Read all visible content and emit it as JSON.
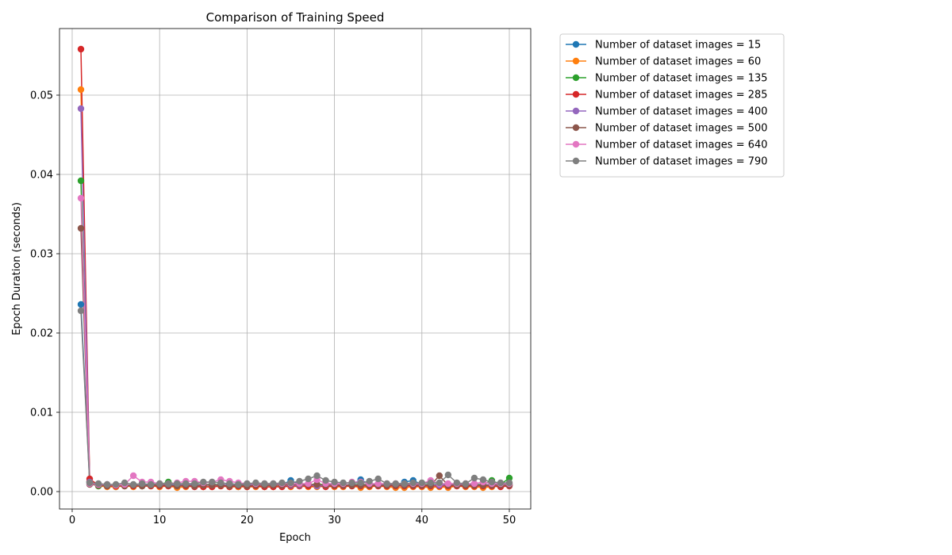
{
  "chart_data": {
    "type": "line",
    "title": "Comparison of Training Speed",
    "xlabel": "Epoch",
    "ylabel": "Epoch Duration (seconds)",
    "xlim": [
      -1.45,
      52.45
    ],
    "ylim": [
      -0.0022,
      0.0584
    ],
    "xticks": [
      0,
      10,
      20,
      30,
      40,
      50
    ],
    "yticks": [
      0.0,
      0.01,
      0.02,
      0.03,
      0.04,
      0.05
    ],
    "ytick_labels": [
      "0.00",
      "0.01",
      "0.02",
      "0.03",
      "0.04",
      "0.05"
    ],
    "grid": true,
    "legend_position": "outside-top-right",
    "x": [
      1,
      2,
      3,
      4,
      5,
      6,
      7,
      8,
      9,
      10,
      11,
      12,
      13,
      14,
      15,
      16,
      17,
      18,
      19,
      20,
      21,
      22,
      23,
      24,
      25,
      26,
      27,
      28,
      29,
      30,
      31,
      32,
      33,
      34,
      35,
      36,
      37,
      38,
      39,
      40,
      41,
      42,
      43,
      44,
      45,
      46,
      47,
      48,
      49,
      50
    ],
    "series": [
      {
        "name": "Number of dataset images = 15",
        "color": "#1f77b4",
        "values": [
          0.0236,
          0.0012,
          0.0008,
          0.0007,
          0.0006,
          0.0008,
          0.0007,
          0.0008,
          0.0009,
          0.0008,
          0.0009,
          0.0008,
          0.0008,
          0.0009,
          0.0008,
          0.0009,
          0.0008,
          0.0009,
          0.0006,
          0.0008,
          0.0009,
          0.0008,
          0.0008,
          0.0009,
          0.0014,
          0.0009,
          0.0008,
          0.0009,
          0.0008,
          0.0009,
          0.0008,
          0.0009,
          0.0015,
          0.0009,
          0.0008,
          0.0009,
          0.0008,
          0.0012,
          0.0014,
          0.0009,
          0.0008,
          0.0009,
          0.0008,
          0.0009,
          0.0008,
          0.0009,
          0.0008,
          0.0009,
          0.0008,
          0.0009
        ]
      },
      {
        "name": "Number of dataset images = 60",
        "color": "#ff7f0e",
        "values": [
          0.0507,
          0.0013,
          0.0007,
          0.0006,
          0.0006,
          0.0007,
          0.0006,
          0.0007,
          0.0007,
          0.0006,
          0.0007,
          0.0005,
          0.0006,
          0.0007,
          0.0006,
          0.0006,
          0.0007,
          0.0006,
          0.0006,
          0.0006,
          0.0006,
          0.0006,
          0.0006,
          0.0007,
          0.0006,
          0.0007,
          0.0006,
          0.0006,
          0.0007,
          0.0006,
          0.0006,
          0.0007,
          0.0005,
          0.0006,
          0.0007,
          0.0006,
          0.0005,
          0.0005,
          0.0006,
          0.0006,
          0.0005,
          0.0006,
          0.0005,
          0.0007,
          0.0006,
          0.0006,
          0.0005,
          0.0006,
          0.0007,
          0.0008
        ]
      },
      {
        "name": "Number of dataset images = 135",
        "color": "#2ca02c",
        "values": [
          0.0392,
          0.0012,
          0.0007,
          0.0008,
          0.0008,
          0.0008,
          0.0008,
          0.0007,
          0.0009,
          0.0009,
          0.0012,
          0.0009,
          0.0008,
          0.0009,
          0.0009,
          0.0009,
          0.0009,
          0.0008,
          0.0008,
          0.0009,
          0.0009,
          0.0008,
          0.0008,
          0.0009,
          0.0009,
          0.0009,
          0.0009,
          0.0009,
          0.0009,
          0.0009,
          0.0008,
          0.0009,
          0.0009,
          0.0009,
          0.0009,
          0.0009,
          0.0008,
          0.0009,
          0.0009,
          0.0009,
          0.0009,
          0.0009,
          0.0009,
          0.0009,
          0.0008,
          0.0009,
          0.0009,
          0.0014,
          0.0009,
          0.0017
        ]
      },
      {
        "name": "Number of dataset images = 285",
        "color": "#d62728",
        "values": [
          0.0558,
          0.0016,
          0.0008,
          0.0007,
          0.0007,
          0.0007,
          0.0007,
          0.0007,
          0.0007,
          0.0007,
          0.0007,
          0.0007,
          0.0007,
          0.0006,
          0.0006,
          0.0006,
          0.0007,
          0.0006,
          0.0007,
          0.0006,
          0.0007,
          0.0006,
          0.0006,
          0.0006,
          0.0007,
          0.0007,
          0.0007,
          0.0007,
          0.0006,
          0.0007,
          0.0007,
          0.0007,
          0.0007,
          0.0007,
          0.0007,
          0.0007,
          0.0007,
          0.0007,
          0.0007,
          0.0007,
          0.0007,
          0.0007,
          0.0007,
          0.0007,
          0.0007,
          0.0007,
          0.0007,
          0.0007,
          0.0006,
          0.0007
        ]
      },
      {
        "name": "Number of dataset images = 400",
        "color": "#9467bd",
        "values": [
          0.0483,
          0.0012,
          0.0008,
          0.0008,
          0.0008,
          0.0008,
          0.0008,
          0.0008,
          0.0008,
          0.0009,
          0.0008,
          0.0008,
          0.0009,
          0.0008,
          0.0009,
          0.0008,
          0.0009,
          0.0008,
          0.0008,
          0.0008,
          0.0009,
          0.0008,
          0.0009,
          0.0008,
          0.0008,
          0.0008,
          0.0009,
          0.0007,
          0.0008,
          0.0009,
          0.0008,
          0.0009,
          0.0008,
          0.0009,
          0.0008,
          0.0009,
          0.0008,
          0.0008,
          0.0009,
          0.0008,
          0.0009,
          0.0008,
          0.0009,
          0.0008,
          0.0009,
          0.0008,
          0.0009,
          0.0008,
          0.0009,
          0.0008
        ]
      },
      {
        "name": "Number of dataset images = 500",
        "color": "#8c564b",
        "values": [
          0.0332,
          0.0009,
          0.0008,
          0.0007,
          0.0008,
          0.0007,
          0.0008,
          0.0007,
          0.0008,
          0.0008,
          0.0008,
          0.0007,
          0.0008,
          0.0007,
          0.0008,
          0.0008,
          0.0008,
          0.0007,
          0.0008,
          0.0007,
          0.0008,
          0.0008,
          0.0008,
          0.0008,
          0.0009,
          0.0009,
          0.0009,
          0.0009,
          0.0008,
          0.0008,
          0.0008,
          0.0008,
          0.0008,
          0.0008,
          0.0008,
          0.0008,
          0.0008,
          0.0008,
          0.0008,
          0.0008,
          0.0008,
          0.002,
          0.0008,
          0.0008,
          0.0008,
          0.0008,
          0.0008,
          0.0008,
          0.0008,
          0.0008
        ]
      },
      {
        "name": "Number of dataset images = 640",
        "color": "#e377c2",
        "values": [
          0.037,
          0.001,
          0.0009,
          0.0009,
          0.0008,
          0.0009,
          0.002,
          0.0012,
          0.0012,
          0.001,
          0.001,
          0.0011,
          0.0013,
          0.0013,
          0.0011,
          0.0012,
          0.0015,
          0.0013,
          0.0011,
          0.001,
          0.001,
          0.001,
          0.001,
          0.001,
          0.001,
          0.001,
          0.001,
          0.0015,
          0.001,
          0.001,
          0.001,
          0.0012,
          0.0012,
          0.001,
          0.001,
          0.001,
          0.001,
          0.001,
          0.001,
          0.001,
          0.0014,
          0.001,
          0.001,
          0.001,
          0.001,
          0.001,
          0.0012,
          0.001,
          0.001,
          0.001
        ]
      },
      {
        "name": "Number of dataset images = 790",
        "color": "#7f7f7f",
        "values": [
          0.0228,
          0.0011,
          0.001,
          0.0009,
          0.0009,
          0.0011,
          0.0009,
          0.001,
          0.0009,
          0.001,
          0.001,
          0.001,
          0.001,
          0.001,
          0.0012,
          0.0012,
          0.0011,
          0.001,
          0.0009,
          0.001,
          0.0011,
          0.001,
          0.001,
          0.0011,
          0.0011,
          0.0013,
          0.0016,
          0.002,
          0.0014,
          0.0012,
          0.0011,
          0.0011,
          0.0011,
          0.0013,
          0.0016,
          0.001,
          0.001,
          0.001,
          0.0011,
          0.0011,
          0.0011,
          0.0011,
          0.0021,
          0.0011,
          0.001,
          0.0017,
          0.0015,
          0.0012,
          0.0011,
          0.0011
        ]
      }
    ]
  }
}
